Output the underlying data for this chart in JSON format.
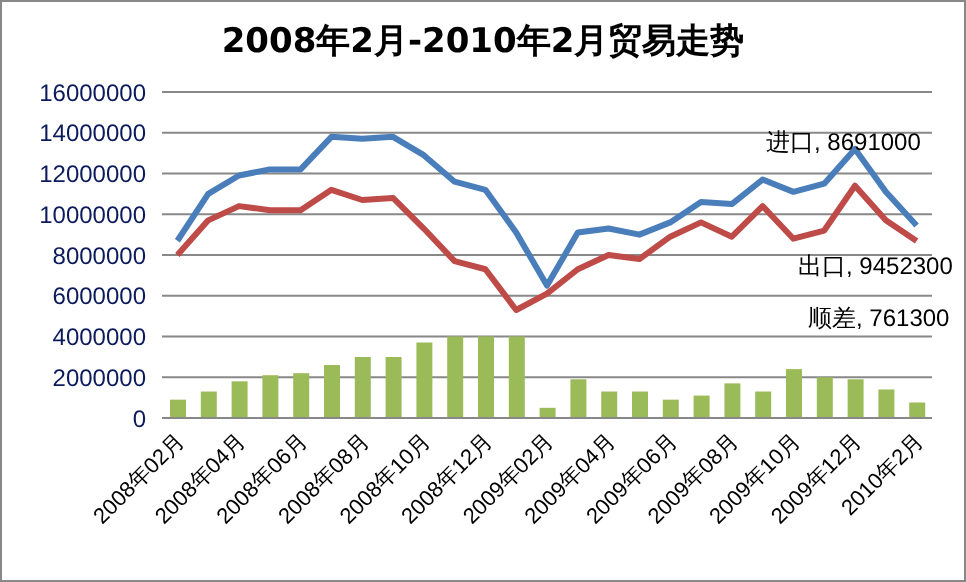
{
  "chart_data": {
    "type": "line",
    "title": "2008年2月-2010年2月贸易走势",
    "categories": [
      "2008年02月",
      null,
      "2008年04月",
      null,
      "2008年06月",
      null,
      "2008年08月",
      null,
      "2008年10月",
      null,
      "2008年12月",
      null,
      "2009年02月",
      null,
      "2009年04月",
      null,
      "2009年06月",
      null,
      "2009年08月",
      null,
      "2009年10月",
      null,
      "2009年12月",
      null,
      "2010年2月"
    ],
    "series": [
      {
        "type": "bar",
        "color": "#9bbb59",
        "values": [
          900000,
          1300000,
          1800000,
          2100000,
          2200000,
          2600000,
          3000000,
          3000000,
          3700000,
          4000000,
          4000000,
          4000000,
          500000,
          1900000,
          1300000,
          1300000,
          900000,
          1100000,
          1700000,
          1300000,
          2400000,
          2000000,
          1900000,
          1400000,
          761300
        ]
      },
      {
        "color": "#4a7ebb",
        "values": [
          8700000,
          11000000,
          11900000,
          12200000,
          12200000,
          13800000,
          13700000,
          13800000,
          12900000,
          11600000,
          11200000,
          9100000,
          6500000,
          9100000,
          9300000,
          9000000,
          9600000,
          10600000,
          10500000,
          11700000,
          11100000,
          11500000,
          13200000,
          11100000,
          9452300
        ]
      },
      {
        "color": "#be4b48",
        "values": [
          8000000,
          9700000,
          10400000,
          10200000,
          10200000,
          11200000,
          10700000,
          10800000,
          9300000,
          7700000,
          7300000,
          5300000,
          6100000,
          7300000,
          8000000,
          7800000,
          8900000,
          9600000,
          8900000,
          10400000,
          8800000,
          9200000,
          11400000,
          9700000,
          8691000
        ]
      }
    ],
    "ylim": [
      0,
      16000000
    ],
    "yticks": [
      0,
      2000000,
      4000000,
      6000000,
      8000000,
      10000000,
      12000000,
      14000000,
      16000000
    ],
    "grid": "y",
    "legend": false,
    "marker": "none",
    "annotations": [
      "进口, 8691000",
      "出口, 9452300",
      "顺差, 761300"
    ]
  }
}
